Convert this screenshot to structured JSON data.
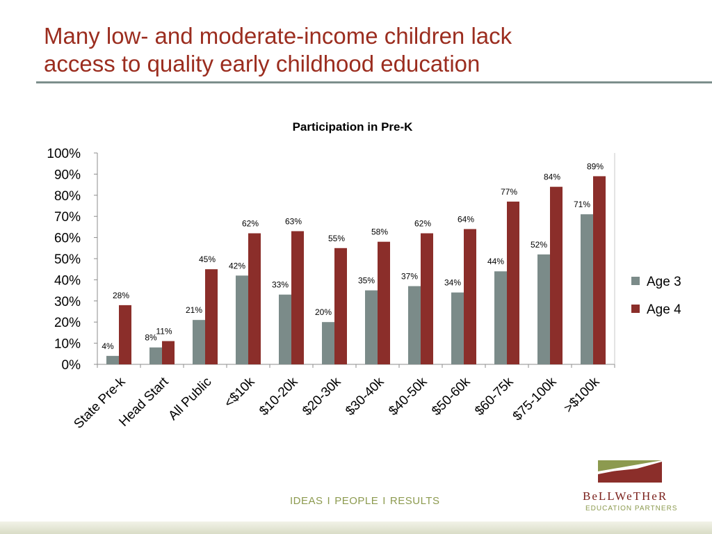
{
  "slide": {
    "title_line1": "Many low- and moderate-income children lack",
    "title_line2": "access to quality early childhood education"
  },
  "footer": {
    "tagline": [
      "IDEAS",
      "PEOPLE",
      "RESULTS"
    ],
    "separator": "I",
    "logo_name": "BeLLWeTHeR",
    "logo_sub": "EDUCATION PARTNERS"
  },
  "colors": {
    "title": "#9b2d1f",
    "age3": "#7b8b89",
    "age4": "#8b2e2a",
    "accent_green": "#8c9a4f"
  },
  "chart_data": {
    "type": "bar",
    "title": "Participation in Pre-K",
    "categories": [
      "State Pre-k",
      "Head Start",
      "All Public",
      "<$10k",
      "$10-20k",
      "$20-30k",
      "$30-40k",
      "$40-50k",
      "$50-60k",
      "$60-75k",
      "$75-100k",
      ">$100k"
    ],
    "series": [
      {
        "name": "Age 3",
        "values": [
          4,
          8,
          21,
          42,
          33,
          20,
          35,
          37,
          34,
          44,
          52,
          71
        ],
        "labels": [
          "4%",
          "8%",
          "21%",
          "42%",
          "33%",
          "20%",
          "35%",
          "37%",
          "34%",
          "44%",
          "52%",
          "71%"
        ]
      },
      {
        "name": "Age 4",
        "values": [
          28,
          11,
          45,
          62,
          63,
          55,
          58,
          62,
          64,
          77,
          84,
          89
        ],
        "labels": [
          "28%",
          "11%",
          "45%",
          "62%",
          "63%",
          "55%",
          "58%",
          "62%",
          "64%",
          "77%",
          "84%",
          "89%"
        ]
      }
    ],
    "yticks": [
      "0%",
      "10%",
      "20%",
      "30%",
      "40%",
      "50%",
      "60%",
      "70%",
      "80%",
      "90%",
      "100%"
    ],
    "ylim": [
      0,
      100
    ],
    "legend": "right",
    "grid": false
  }
}
